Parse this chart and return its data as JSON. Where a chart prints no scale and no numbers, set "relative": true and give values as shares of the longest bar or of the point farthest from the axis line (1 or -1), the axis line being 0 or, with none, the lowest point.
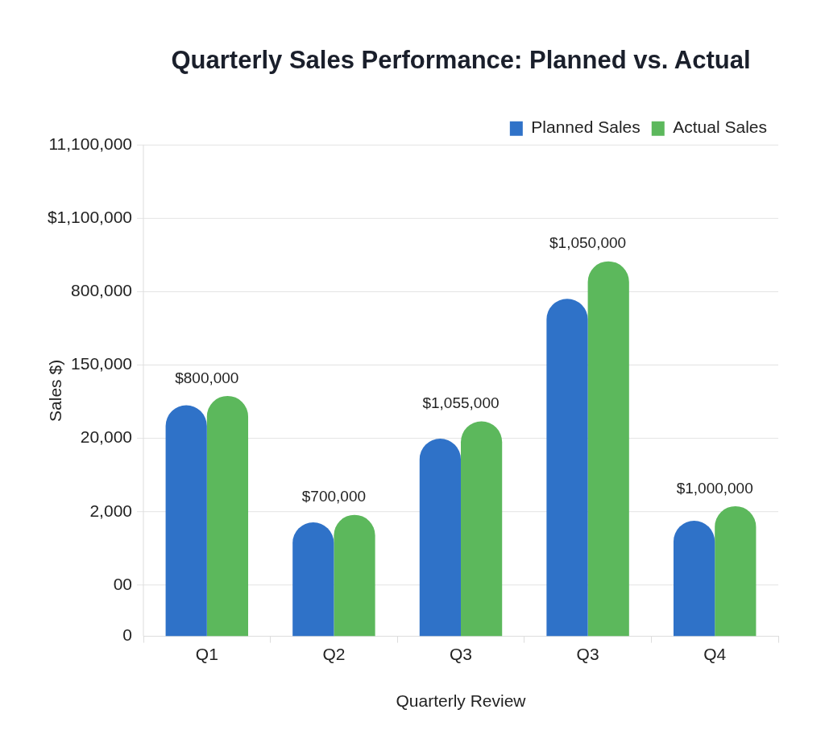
{
  "chart_data": {
    "type": "bar",
    "title": "Quarterly Sales Performance: Planned vs. Actual",
    "xlabel": "Quarterly Review",
    "ylabel": "Sales $)",
    "categories": [
      "Q1",
      "Q2",
      "Q3",
      "Q3",
      "Q4"
    ],
    "series": [
      {
        "name": "Planned Sales",
        "color": "#2f72c8",
        "values": [
          0.616,
          0.304,
          0.527,
          0.9,
          0.308
        ]
      },
      {
        "name": "Actual Sales",
        "color": "#5cb85c",
        "values": [
          0.641,
          0.324,
          0.573,
          1,
          0.347
        ]
      }
    ],
    "relative": true,
    "annotations": [
      "0",
      "00",
      "2,000",
      "20,000",
      "150,000",
      "800,000",
      "$1,100,000",
      "11,100,000",
      "$800,000",
      "$700,000",
      "$1,055,000",
      "$1,050,000",
      "$1,000,000"
    ],
    "grid": "y",
    "legend": "top right"
  }
}
